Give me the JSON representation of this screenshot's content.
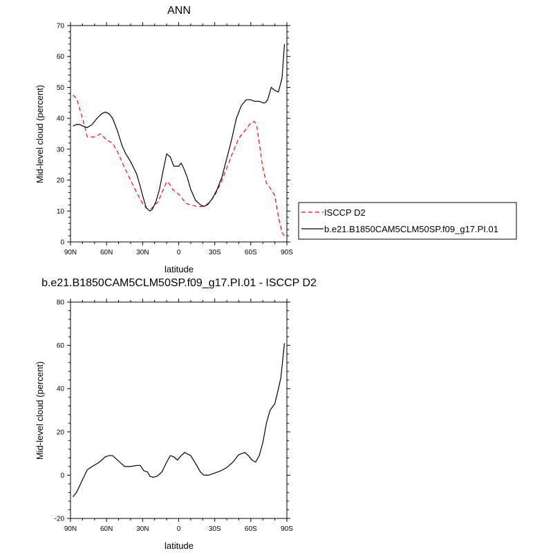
{
  "chart_data": [
    {
      "type": "line",
      "title": "ANN",
      "xlabel": "latitude",
      "ylabel": "Mid-level cloud (percent)",
      "xlim": [
        90,
        -90
      ],
      "ylim": [
        0,
        70
      ],
      "xticks": [
        90,
        60,
        30,
        0,
        -30,
        -60,
        -90
      ],
      "xticklabels": [
        "90N",
        "60N",
        "30N",
        "0",
        "30S",
        "60S",
        "90S"
      ],
      "yticks": [
        0,
        10,
        20,
        30,
        40,
        50,
        60,
        70
      ],
      "yticklabels": [
        "0",
        "10",
        "20",
        "30",
        "40",
        "50",
        "60",
        "70"
      ],
      "grid": false,
      "legend": "right",
      "series": [
        {
          "name": "ISCCP D2",
          "color": "#ff0000",
          "dash": "dashed",
          "x": [
            88,
            85,
            80,
            76,
            70,
            65,
            60,
            55,
            50,
            45,
            40,
            35,
            30,
            27,
            25,
            22,
            20,
            17,
            15,
            10,
            8,
            5,
            2,
            0,
            -3,
            -6,
            -10,
            -15,
            -20,
            -23,
            -26,
            -30,
            -35,
            -40,
            -45,
            -50,
            -55,
            -60,
            -63,
            -65,
            -67,
            -70,
            -73,
            -76,
            -80,
            -83,
            -86,
            -88
          ],
          "y": [
            47.5,
            46.5,
            40,
            34,
            34,
            35,
            33,
            32,
            28.5,
            24,
            20,
            16,
            12.5,
            11,
            10.5,
            11,
            12,
            13,
            15,
            19.5,
            19,
            17,
            16,
            15.5,
            14,
            12.5,
            12,
            11.5,
            11.5,
            12,
            13,
            15,
            19,
            24,
            29,
            33.5,
            36,
            38.5,
            39,
            37.5,
            32,
            24,
            19,
            17.5,
            15,
            8,
            3,
            2
          ]
        },
        {
          "name": "b.e21.B1850CAM5CLM50SP.f09_g17.PI.01",
          "color": "#000000",
          "dash": "solid",
          "x": [
            88,
            85,
            82,
            80,
            76,
            72,
            68,
            64,
            61,
            58,
            55,
            51,
            47,
            44,
            40,
            35,
            32,
            30,
            27,
            24,
            22,
            19,
            16,
            13,
            10,
            7,
            4,
            2,
            0,
            -2,
            -4,
            -7,
            -10,
            -14,
            -18,
            -21,
            -24,
            -28,
            -32,
            -36,
            -40,
            -44,
            -48,
            -52,
            -56,
            -60,
            -63,
            -67,
            -70,
            -72,
            -74,
            -77,
            -80,
            -83,
            -86,
            -88
          ],
          "y": [
            37.5,
            38,
            38,
            37.5,
            37,
            38,
            40,
            41.5,
            42,
            41.5,
            40,
            36,
            31,
            28.5,
            26,
            22,
            18,
            15,
            11,
            10,
            10.5,
            13,
            17,
            23,
            28.5,
            27.5,
            24.5,
            24.5,
            24.5,
            25.5,
            24,
            21,
            17,
            13.5,
            12,
            11.5,
            12,
            14,
            17,
            21,
            27,
            33,
            40,
            44,
            46,
            46,
            45.5,
            45.5,
            45,
            45,
            46,
            50,
            49,
            48.5,
            53,
            64
          ]
        }
      ]
    },
    {
      "type": "line",
      "title": "b.e21.B1850CAM5CLM50SP.f09_g17.PI.01 - ISCCP D2",
      "xlabel": "latitude",
      "ylabel": "Mid-level cloud (percent)",
      "xlim": [
        90,
        -90
      ],
      "ylim": [
        -20,
        80
      ],
      "xticks": [
        90,
        60,
        30,
        0,
        -30,
        -60,
        -90
      ],
      "xticklabels": [
        "90N",
        "60N",
        "30N",
        "0",
        "30S",
        "60S",
        "90S"
      ],
      "yticks": [
        -20,
        0,
        20,
        40,
        60,
        80
      ],
      "yticklabels": [
        "-20",
        "0",
        "20",
        "40",
        "60",
        "80"
      ],
      "grid": false,
      "series": [
        {
          "color": "#000000",
          "dash": "solid",
          "x": [
            88,
            85,
            80,
            76,
            72,
            66,
            61,
            58,
            55,
            50,
            45,
            40,
            35,
            32,
            29,
            26,
            24,
            21,
            18,
            14,
            10,
            7,
            4,
            1,
            -2,
            -5,
            -10,
            -15,
            -18,
            -21,
            -25,
            -30,
            -35,
            -40,
            -45,
            -50,
            -55,
            -58,
            -61,
            -64,
            -67,
            -70,
            -73,
            -76,
            -80,
            -83,
            -85,
            -88
          ],
          "y": [
            -10,
            -8,
            -2,
            2.5,
            4,
            6,
            8.5,
            9,
            9,
            6.5,
            4,
            4,
            4.5,
            4.5,
            2,
            1.5,
            -0.5,
            -1,
            -0.5,
            1.5,
            6,
            9,
            8.5,
            7,
            9,
            10.5,
            9,
            4.5,
            1.5,
            0,
            0,
            1,
            2,
            3.5,
            6,
            9.5,
            10.5,
            9,
            7,
            6,
            9,
            15,
            24,
            30,
            33,
            40,
            45,
            61
          ]
        }
      ]
    }
  ]
}
